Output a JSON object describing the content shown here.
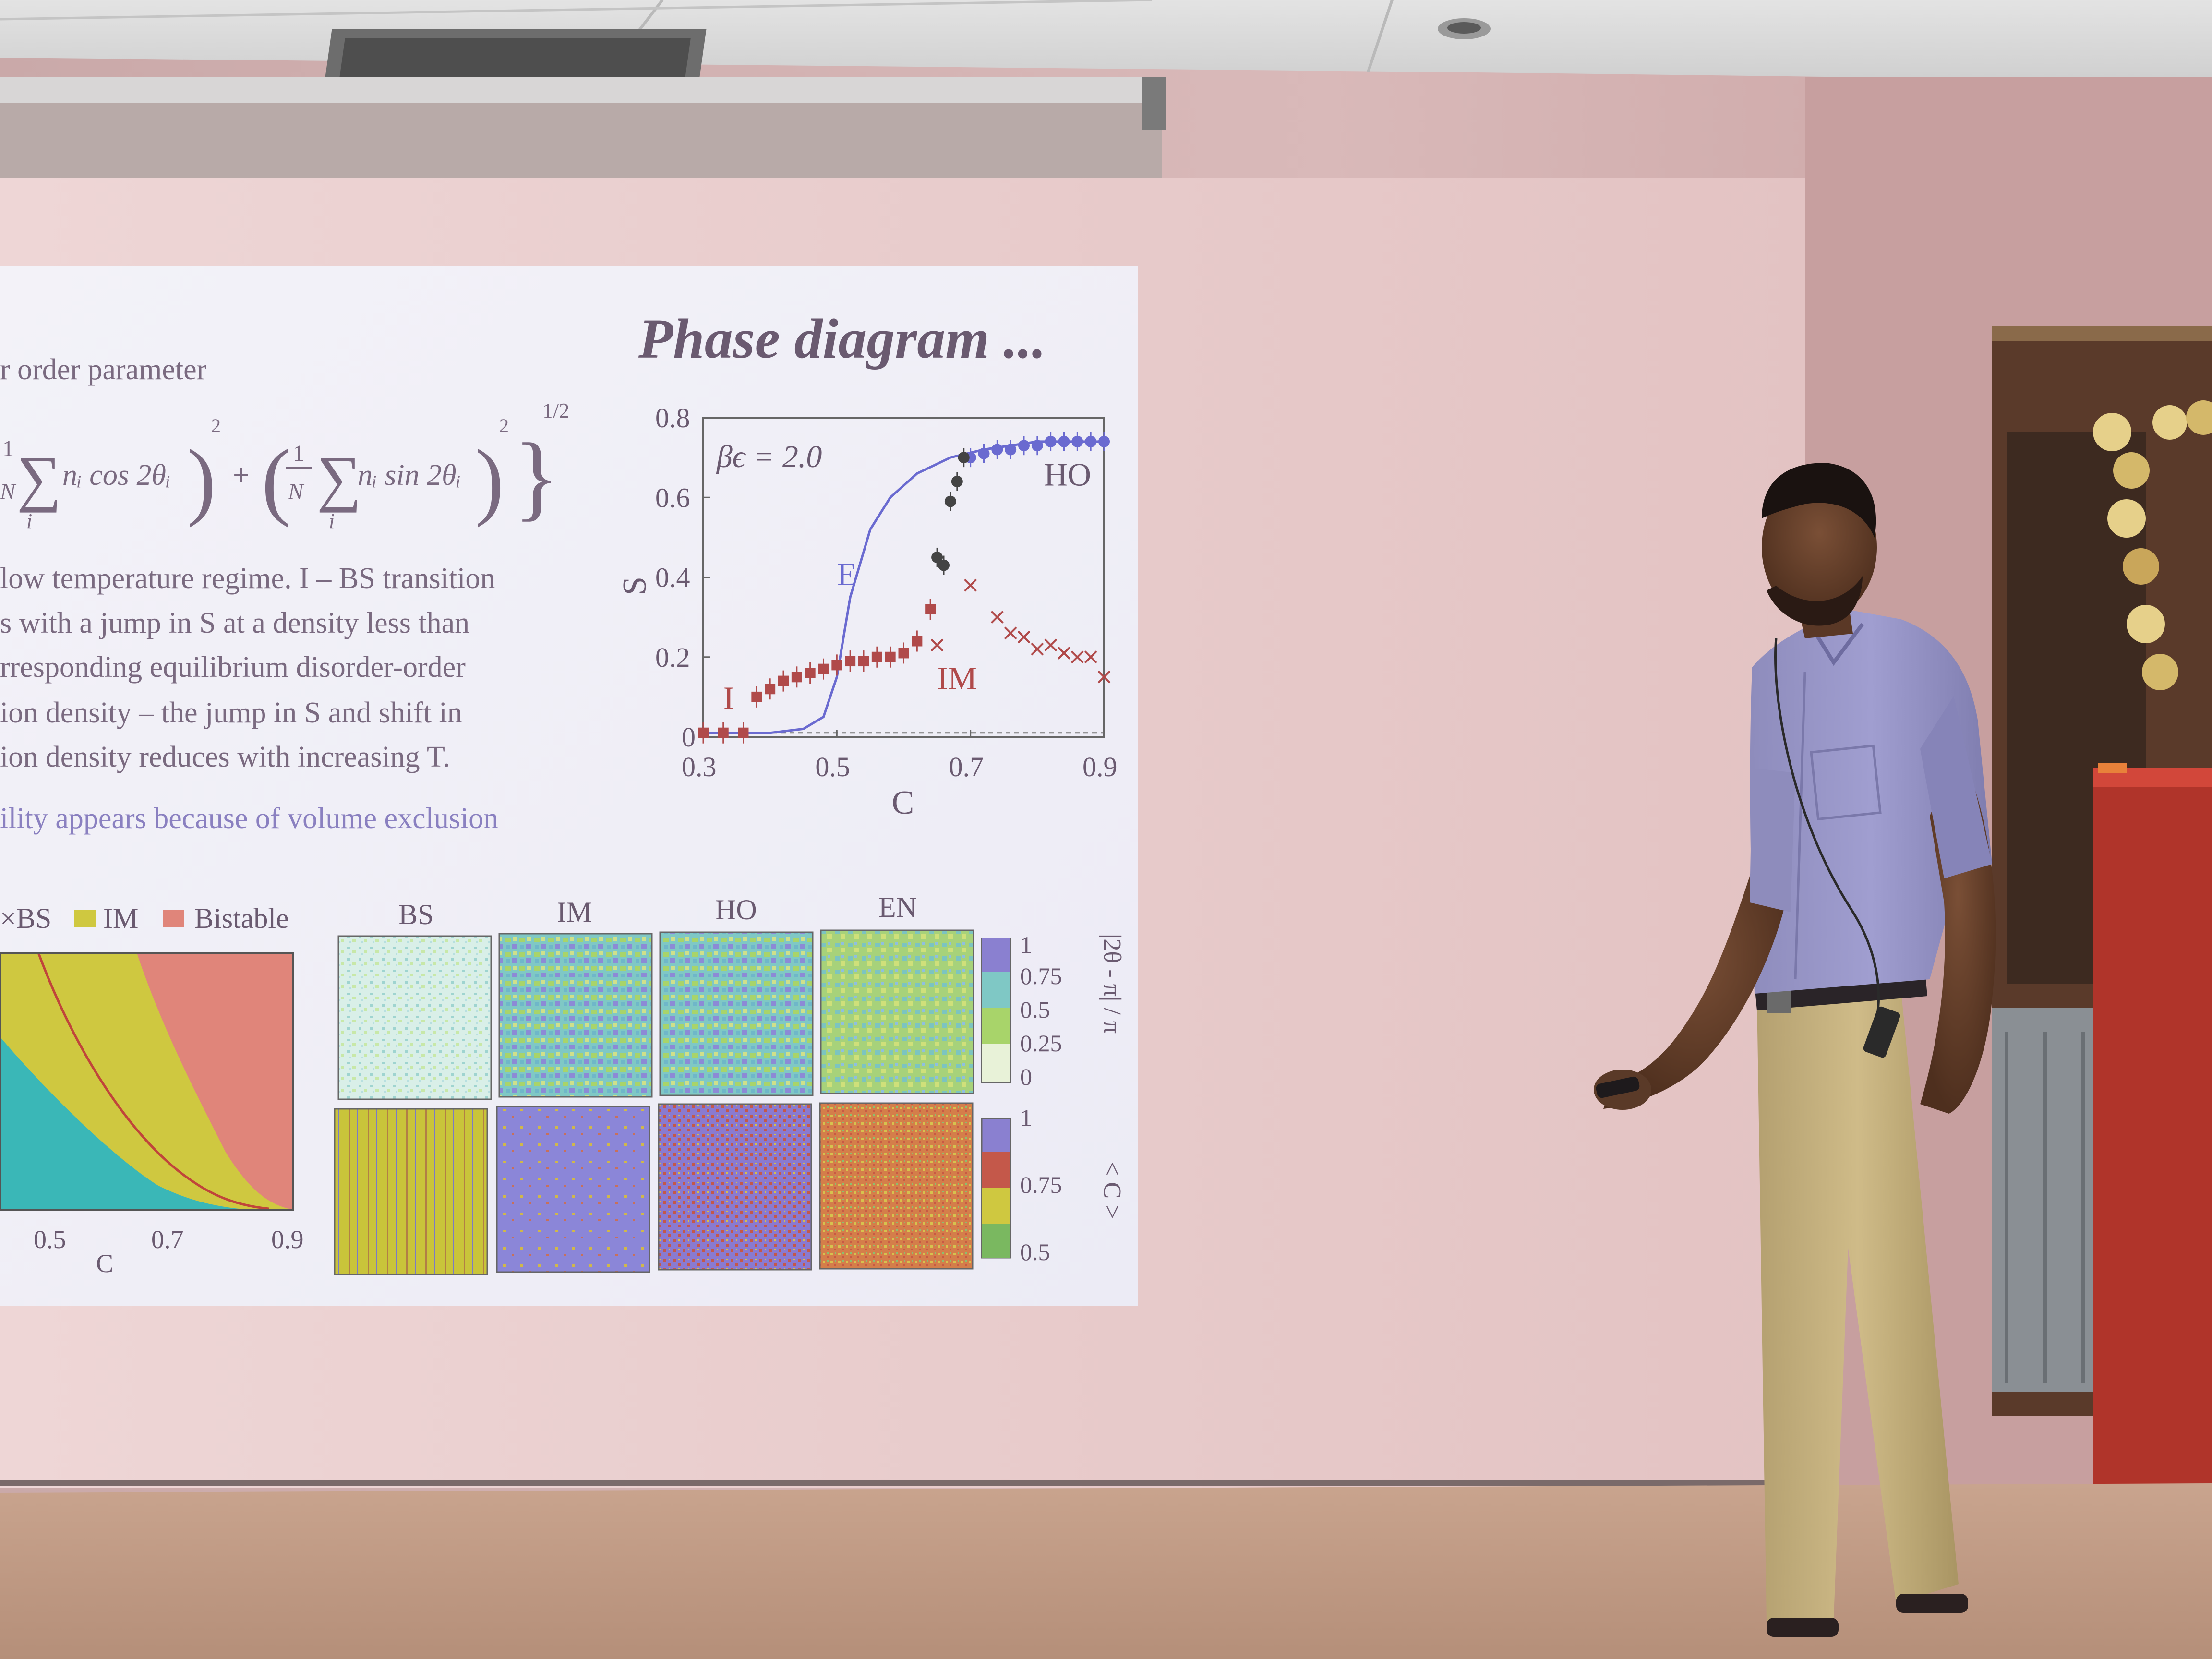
{
  "slide": {
    "title": "Phase diagram ...",
    "order_param_text": "r order parameter",
    "formula": {
      "one": "1",
      "N": "N",
      "sum": "∑",
      "i": "i",
      "cos_term": "nᵢ cos 2θᵢ",
      "sin_term": "nᵢ sin 2θᵢ",
      "power2": "2",
      "half": "1/2",
      "plus": "+"
    },
    "bullet_lines": [
      "low temperature regime. I – BS transition",
      "s with a jump in S at a density less than",
      "rresponding equilibrium disorder-order",
      "ion density – the jump in S and shift in",
      "ion density reduces with increasing T."
    ],
    "bullet_last": "ility appears because of volume exclusion"
  },
  "chart_data": [
    {
      "type": "scatter",
      "title": "",
      "xlabel": "C",
      "ylabel": "S",
      "xlim": [
        0.3,
        0.9
      ],
      "ylim": [
        0,
        0.8
      ],
      "xticks": [
        "0.3",
        "0.5",
        "0.7",
        "0.9"
      ],
      "yticks": [
        "0",
        "0.2",
        "0.4",
        "0.6",
        "0.8"
      ],
      "annotation": "βϵ = 2.0",
      "region_labels": [
        "I",
        "E",
        "IM",
        "HO"
      ],
      "series": [
        {
          "name": "E",
          "color": "#6a6ad0",
          "style": "line",
          "x": [
            0.3,
            0.35,
            0.4,
            0.45,
            0.48,
            0.5,
            0.52,
            0.55,
            0.58,
            0.62,
            0.67,
            0.72,
            0.8,
            0.9
          ],
          "y": [
            0.01,
            0.01,
            0.01,
            0.02,
            0.05,
            0.15,
            0.35,
            0.52,
            0.6,
            0.66,
            0.7,
            0.72,
            0.74,
            0.74
          ]
        },
        {
          "name": "I / BS",
          "color": "#b04a4a",
          "style": "square",
          "x": [
            0.3,
            0.33,
            0.36,
            0.38,
            0.4,
            0.42,
            0.44,
            0.46,
            0.48,
            0.5,
            0.52,
            0.54,
            0.56,
            0.58,
            0.6,
            0.62,
            0.64
          ],
          "y": [
            0.01,
            0.01,
            0.01,
            0.1,
            0.12,
            0.14,
            0.15,
            0.16,
            0.17,
            0.18,
            0.19,
            0.19,
            0.2,
            0.2,
            0.21,
            0.24,
            0.32
          ]
        },
        {
          "name": "HO",
          "color": "#6a6ad0",
          "style": "circle",
          "x": [
            0.7,
            0.72,
            0.74,
            0.76,
            0.78,
            0.8,
            0.82,
            0.84,
            0.86,
            0.88,
            0.9
          ],
          "y": [
            0.7,
            0.71,
            0.72,
            0.72,
            0.73,
            0.73,
            0.74,
            0.74,
            0.74,
            0.74,
            0.74
          ]
        },
        {
          "name": "IM-black",
          "color": "#444444",
          "style": "circle",
          "x": [
            0.65,
            0.66,
            0.67,
            0.68,
            0.69
          ],
          "y": [
            0.45,
            0.43,
            0.59,
            0.64,
            0.7
          ]
        },
        {
          "name": "IM",
          "color": "#b04a4a",
          "style": "cross",
          "x": [
            0.65,
            0.7,
            0.74,
            0.76,
            0.78,
            0.8,
            0.82,
            0.84,
            0.86,
            0.88,
            0.9
          ],
          "y": [
            0.23,
            0.38,
            0.3,
            0.26,
            0.25,
            0.22,
            0.23,
            0.21,
            0.2,
            0.2,
            0.15
          ]
        }
      ]
    },
    {
      "type": "area",
      "title": "",
      "xlabel": "C",
      "xticks": [
        "0.5",
        "0.7",
        "0.9"
      ],
      "legend": [
        {
          "label": "×BS",
          "color": "#3ab7b7"
        },
        {
          "label": "IM",
          "color": "#cfc840"
        },
        {
          "label": "Bistable",
          "color": "#e0857a"
        }
      ]
    },
    {
      "type": "heatmap",
      "column_labels": [
        "BS",
        "IM",
        "HO",
        "EN"
      ],
      "colorbar_top": {
        "label": "|2θ - π| / π",
        "ticks": [
          "1",
          "0.75",
          "0.5",
          "0.25",
          "0"
        ]
      },
      "colorbar_bottom": {
        "label": "< C >",
        "ticks": [
          "1",
          "0.75",
          "0.5"
        ]
      }
    }
  ]
}
